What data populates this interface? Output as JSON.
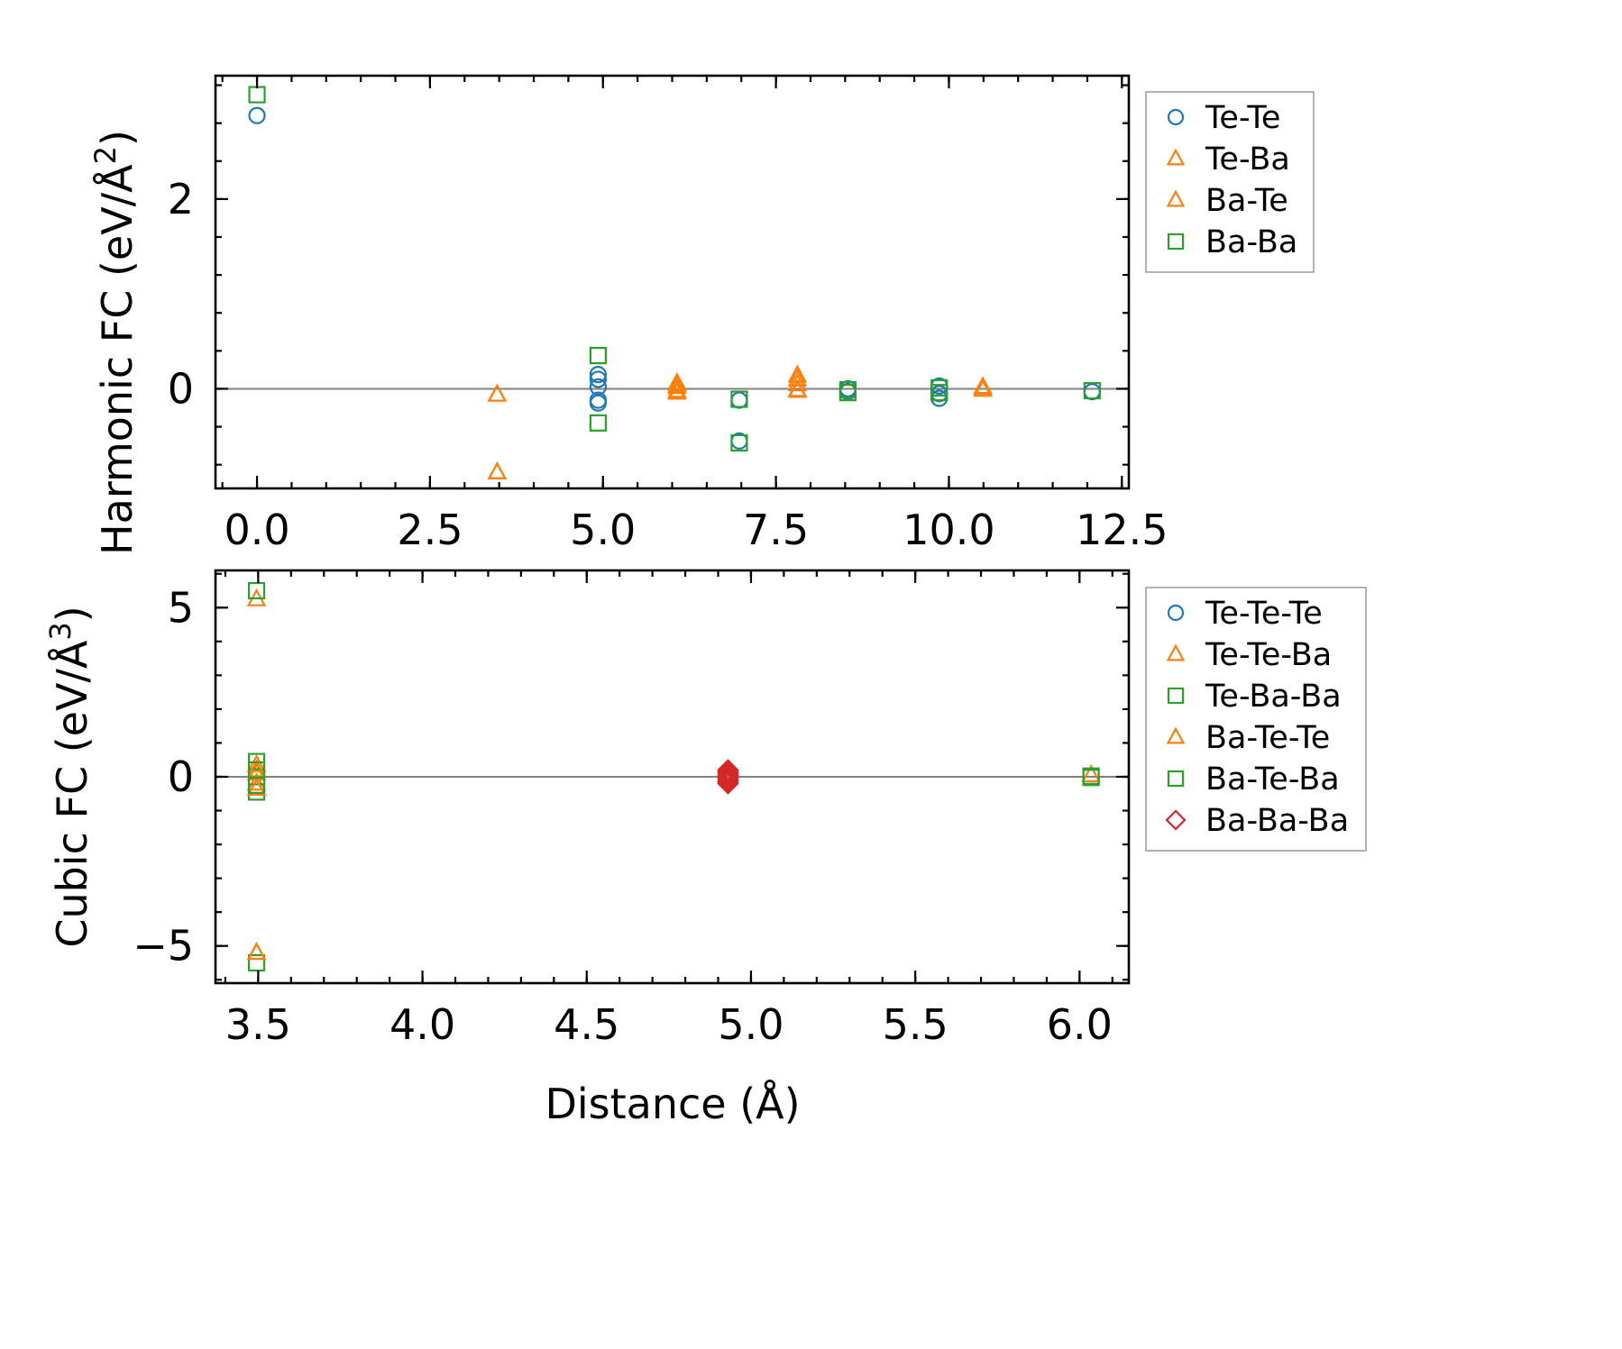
{
  "figure": {
    "xlabel": "Distance (Å)"
  },
  "colors": {
    "blue": "#1f77b4",
    "orange": "#ff7f0e",
    "green": "#2ca02c",
    "red": "#d62728",
    "zero_line": "#808080"
  },
  "chart_data": [
    {
      "type": "scatter",
      "ylabel_main": "Harmonic FC (eV/Å",
      "ylabel_sup": "2",
      "ylabel_close": ")",
      "xlabel": "",
      "xlim": [
        -0.6,
        12.6
      ],
      "ylim": [
        -1.05,
        3.3
      ],
      "xticks": [
        0.0,
        2.5,
        5.0,
        7.5,
        10.0,
        12.5
      ],
      "xtick_labels": [
        "0.0",
        "2.5",
        "5.0",
        "7.5",
        "10.0",
        "12.5"
      ],
      "yticks": [
        0,
        2
      ],
      "ytick_labels": [
        "0",
        "2"
      ],
      "legend_position": "outside-right-top",
      "series": [
        {
          "name": "Te-Te",
          "marker": "circle",
          "color": "#1f77b4",
          "x": [
            0.0,
            4.93,
            4.93,
            4.93,
            4.93,
            4.93,
            6.97,
            6.97,
            8.54,
            8.54,
            9.86,
            9.86,
            9.86,
            12.07
          ],
          "y": [
            2.88,
            0.15,
            0.1,
            0.02,
            -0.12,
            -0.15,
            -0.12,
            -0.55,
            0.0,
            -0.03,
            0.03,
            -0.05,
            -0.1,
            -0.03
          ]
        },
        {
          "name": "Te-Ba",
          "marker": "triangle",
          "color": "#ff7f0e",
          "x": [
            3.47,
            3.47,
            6.07,
            6.07,
            6.07,
            7.81,
            7.81,
            7.81,
            10.49,
            10.49
          ],
          "y": [
            -0.06,
            -0.88,
            0.06,
            0.02,
            -0.04,
            0.14,
            0.05,
            -0.02,
            0.02,
            -0.01
          ]
        },
        {
          "name": "Ba-Te",
          "marker": "triangle",
          "color": "#ff7f0e",
          "x": [
            3.47,
            3.47,
            6.07,
            6.07,
            7.81,
            7.81,
            10.49
          ],
          "y": [
            -0.06,
            -0.88,
            0.04,
            -0.02,
            0.1,
            -0.01,
            0.01
          ]
        },
        {
          "name": "Ba-Ba",
          "marker": "square",
          "color": "#2ca02c",
          "x": [
            0.0,
            4.93,
            4.93,
            6.97,
            6.97,
            8.54,
            8.54,
            9.86,
            9.86,
            12.07
          ],
          "y": [
            3.1,
            0.35,
            -0.36,
            -0.11,
            -0.57,
            -0.01,
            -0.04,
            0.01,
            -0.04,
            -0.02
          ]
        }
      ]
    },
    {
      "type": "scatter",
      "ylabel_main": "Cubic FC (eV/Å",
      "ylabel_sup": "3",
      "ylabel_close": ")",
      "xlabel": "Distance (Å)",
      "xlim": [
        3.37,
        6.15
      ],
      "ylim": [
        -6.1,
        6.1
      ],
      "xticks": [
        3.5,
        4.0,
        4.5,
        5.0,
        5.5,
        6.0
      ],
      "xtick_labels": [
        "3.5",
        "4.0",
        "4.5",
        "5.0",
        "5.5",
        "6.0"
      ],
      "yticks": [
        -5,
        0,
        5
      ],
      "ytick_labels": [
        "−5",
        "0",
        "5"
      ],
      "legend_position": "outside-right-top",
      "series": [
        {
          "name": "Te-Te-Te",
          "marker": "circle",
          "color": "#1f77b4",
          "x": [],
          "y": []
        },
        {
          "name": "Te-Te-Ba",
          "marker": "triangle",
          "color": "#ff7f0e",
          "x": [
            3.495,
            3.495,
            3.495,
            3.495,
            3.495,
            6.035
          ],
          "y": [
            5.25,
            0.35,
            0.1,
            -0.2,
            -5.2,
            0.05
          ]
        },
        {
          "name": "Te-Ba-Ba",
          "marker": "square",
          "color": "#2ca02c",
          "x": [
            3.495,
            3.495,
            3.495,
            3.495,
            6.035
          ],
          "y": [
            5.5,
            0.45,
            -0.45,
            -5.5,
            -0.02
          ]
        },
        {
          "name": "Ba-Te-Te",
          "marker": "triangle",
          "color": "#ff7f0e",
          "x": [
            3.495,
            3.495,
            3.495
          ],
          "y": [
            0.2,
            -0.35,
            -5.2
          ]
        },
        {
          "name": "Ba-Te-Ba",
          "marker": "square",
          "color": "#2ca02c",
          "x": [
            3.495,
            3.495,
            6.035
          ],
          "y": [
            0.2,
            -0.25,
            0.02
          ]
        },
        {
          "name": "Ba-Ba-Ba",
          "marker": "diamond",
          "color": "#d62728",
          "filled_look": true,
          "x": [
            4.93,
            4.93,
            4.93,
            4.93,
            4.93,
            4.93,
            4.93,
            4.93,
            4.93
          ],
          "y": [
            0.2,
            0.15,
            0.1,
            0.05,
            0.0,
            -0.05,
            -0.1,
            -0.15,
            -0.2
          ]
        }
      ]
    }
  ]
}
